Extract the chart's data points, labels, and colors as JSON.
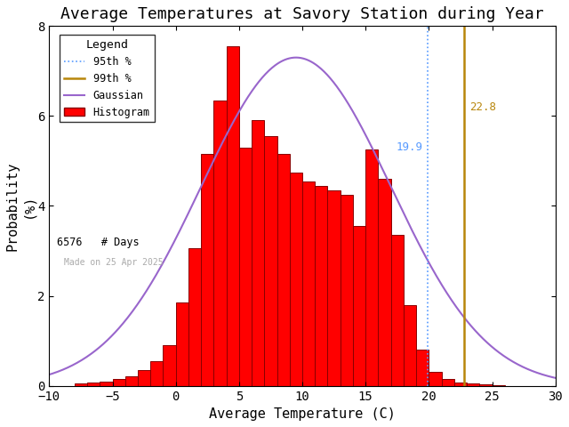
{
  "title": "Average Temperatures at Savory Station during Year",
  "xlabel": "Average Temperature (C)",
  "ylabel": "Probability\n(%)",
  "xlim": [
    -10,
    30
  ],
  "ylim": [
    0,
    8
  ],
  "xticks": [
    -10,
    -5,
    0,
    5,
    10,
    15,
    20,
    25,
    30
  ],
  "yticks": [
    0,
    2,
    4,
    6,
    8
  ],
  "pct95": 19.9,
  "pct99": 22.8,
  "pct95_color": "#5599ff",
  "pct99_color": "#b8860b",
  "gaussian_color": "#9966cc",
  "hist_color": "#ff0000",
  "hist_edge_color": "#880000",
  "n_days": 6576,
  "made_on": "Made on 25 Apr 2025",
  "gaussian_mean": 9.5,
  "gaussian_std": 7.5,
  "gaussian_peak": 7.3,
  "background_color": "#ffffff",
  "title_fontsize": 13,
  "axis_fontsize": 11,
  "tick_fontsize": 10,
  "bin_starts": [
    -8,
    -7,
    -6,
    -5,
    -4,
    -3,
    -2,
    -1,
    0,
    1,
    2,
    3,
    4,
    5,
    6,
    7,
    8,
    9,
    10,
    11,
    12,
    13,
    14,
    15,
    16,
    17,
    18,
    19,
    20,
    21,
    22,
    23,
    24,
    25
  ],
  "bin_heights": [
    0.05,
    0.07,
    0.1,
    0.15,
    0.22,
    0.35,
    0.55,
    0.9,
    1.85,
    3.05,
    5.15,
    6.35,
    7.55,
    5.3,
    5.9,
    5.55,
    5.15,
    4.75,
    4.55,
    4.45,
    4.35,
    4.25,
    3.55,
    5.25,
    4.6,
    3.35,
    1.8,
    0.8,
    0.3,
    0.15,
    0.08,
    0.05,
    0.03,
    0.02
  ]
}
